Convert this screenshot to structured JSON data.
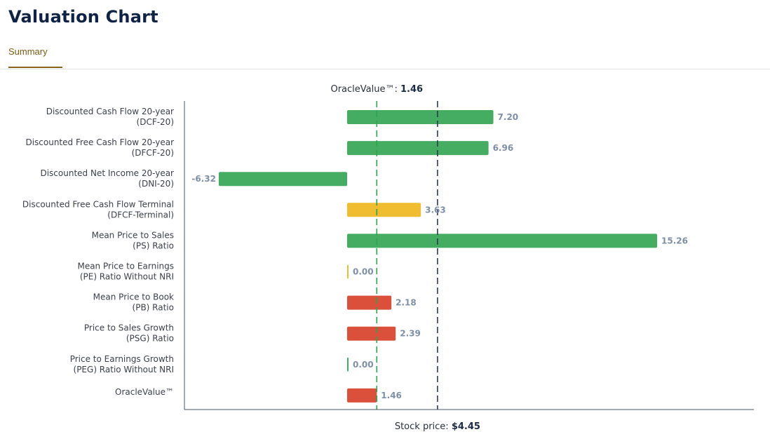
{
  "page": {
    "title": "Valuation Chart",
    "tabs": [
      {
        "label": "Summary",
        "active": true
      }
    ]
  },
  "colors": {
    "green": "#45ad62",
    "yellow": "#f0bd31",
    "red": "#db503b",
    "oracle_line": "#2aa44f",
    "price_line": "#2d3b52",
    "axis": "#4a5568",
    "value_label": "#7e8fa8"
  },
  "chart_data": {
    "type": "bar",
    "orientation": "horizontal",
    "categories": [
      [
        "Discounted Cash Flow 20-year",
        "(DCF-20)"
      ],
      [
        "Discounted Free Cash Flow 20-year",
        "(DFCF-20)"
      ],
      [
        "Discounted Net Income 20-year",
        "(DNI-20)"
      ],
      [
        "Discounted Free Cash Flow Terminal",
        "(DFCF-Terminal)"
      ],
      [
        "Mean Price to Sales",
        "(PS) Ratio"
      ],
      [
        "Mean Price to Earnings",
        "(PE) Ratio Without NRI"
      ],
      [
        "Mean Price to Book",
        "(PB) Ratio"
      ],
      [
        "Price to Sales Growth",
        "(PSG) Ratio"
      ],
      [
        "Price to Earnings Growth",
        "(PEG) Ratio Without NRI"
      ],
      [
        "OracleValue™"
      ]
    ],
    "values": [
      7.2,
      6.96,
      -6.32,
      3.63,
      15.26,
      0.0,
      2.18,
      2.39,
      0.0,
      1.46
    ],
    "value_labels": [
      "7.20",
      "6.96",
      "-6.32",
      "3.63",
      "15.26",
      "0.00",
      "2.18",
      "2.39",
      "0.00",
      "1.46"
    ],
    "bar_colors": [
      "green",
      "green",
      "green",
      "yellow",
      "green",
      "yellow",
      "red",
      "red",
      "green",
      "red"
    ],
    "xlim": [
      -6.32,
      15.26
    ],
    "reference_lines": [
      {
        "label": "OracleValue™: ",
        "value_text": "1.46",
        "value": 1.46,
        "style": "dashed",
        "color": "oracle_line",
        "label_position": "top"
      },
      {
        "label": "Stock price: ",
        "value_text": "$4.45",
        "value": 4.45,
        "style": "dashed",
        "color": "price_line",
        "label_position": "bottom"
      }
    ],
    "grid": false,
    "legend": "none"
  }
}
